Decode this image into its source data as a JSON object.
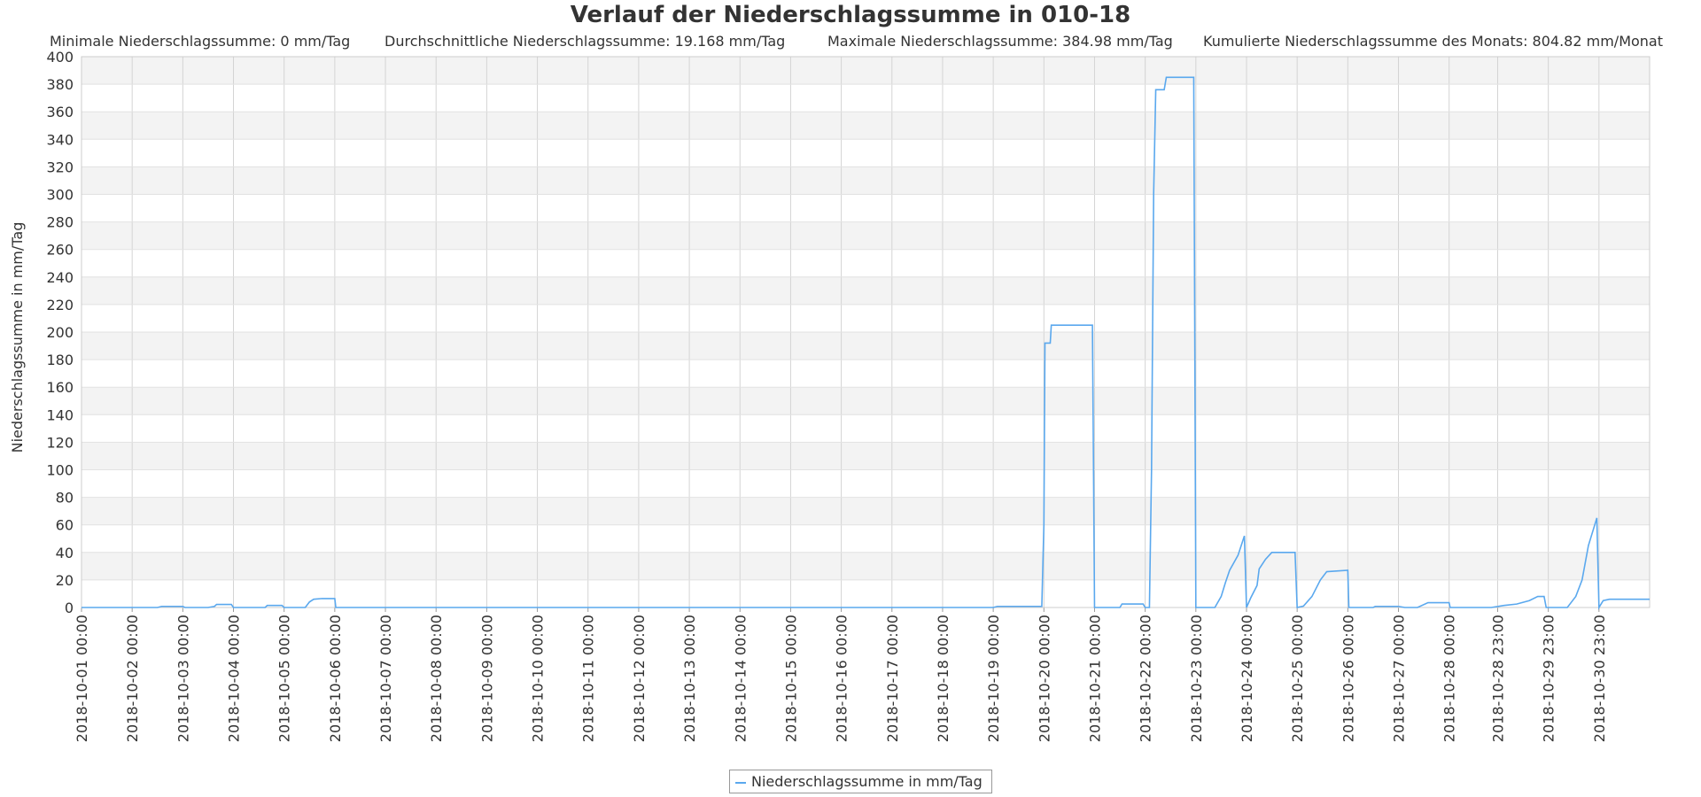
{
  "chart_data": {
    "type": "line",
    "title": "Verlauf der Niederschlagssumme in 010-18",
    "stats": [
      "Minimale Niederschlagssumme: 0 mm/Tag",
      "Durchschnittliche Niederschlagssumme: 19.168 mm/Tag",
      "Maximale Niederschlagssumme: 384.98 mm/Tag",
      "Kumulierte Niederschlagssumme des Monats: 804.82 mm/Monat"
    ],
    "ylabel": "Niederschlagssumme in mm/Tag",
    "xlabel": "",
    "ylim": [
      0,
      400
    ],
    "yticks": [
      0,
      20,
      40,
      60,
      80,
      100,
      120,
      140,
      160,
      180,
      200,
      220,
      240,
      260,
      280,
      300,
      320,
      340,
      360,
      380,
      400
    ],
    "xlim": [
      "2018-10-01 00:00",
      "2018-10-31 23:00"
    ],
    "xticks": [
      "2018-10-01 00:00",
      "2018-10-02 00:00",
      "2018-10-03 00:00",
      "2018-10-04 00:00",
      "2018-10-05 00:00",
      "2018-10-06 00:00",
      "2018-10-07 00:00",
      "2018-10-08 00:00",
      "2018-10-09 00:00",
      "2018-10-10 00:00",
      "2018-10-11 00:00",
      "2018-10-12 00:00",
      "2018-10-13 00:00",
      "2018-10-14 00:00",
      "2018-10-15 00:00",
      "2018-10-16 00:00",
      "2018-10-17 00:00",
      "2018-10-18 00:00",
      "2018-10-19 00:00",
      "2018-10-20 00:00",
      "2018-10-21 00:00",
      "2018-10-22 00:00",
      "2018-10-23 00:00",
      "2018-10-24 00:00",
      "2018-10-25 00:00",
      "2018-10-26 00:00",
      "2018-10-27 00:00",
      "2018-10-28 00:00",
      "2018-10-28 23:00",
      "2018-10-29 23:00",
      "2018-10-30 23:00"
    ],
    "grid": true,
    "legend_position": "bottom",
    "series": [
      {
        "name": "Niederschlagssumme in mm/Tag",
        "color": "#5aa8ee",
        "points": [
          [
            "2018-10-01 00:00",
            0
          ],
          [
            "2018-10-02 12:00",
            0
          ],
          [
            "2018-10-02 14:00",
            0.8
          ],
          [
            "2018-10-03 00:00",
            0.8
          ],
          [
            "2018-10-03 01:00",
            0
          ],
          [
            "2018-10-03 12:00",
            0
          ],
          [
            "2018-10-03 15:00",
            0.8
          ],
          [
            "2018-10-03 16:00",
            2.2
          ],
          [
            "2018-10-03 23:00",
            2.2
          ],
          [
            "2018-10-04 00:00",
            0
          ],
          [
            "2018-10-04 15:00",
            0
          ],
          [
            "2018-10-04 16:00",
            1.5
          ],
          [
            "2018-10-04 23:00",
            1.5
          ],
          [
            "2018-10-05 00:00",
            0
          ],
          [
            "2018-10-05 10:00",
            0
          ],
          [
            "2018-10-05 12:00",
            4
          ],
          [
            "2018-10-05 14:00",
            6
          ],
          [
            "2018-10-05 18:00",
            6.5
          ],
          [
            "2018-10-06 00:00",
            6.5
          ],
          [
            "2018-10-06 00:30",
            0
          ],
          [
            "2018-10-19 00:00",
            0
          ],
          [
            "2018-10-19 02:00",
            0.8
          ],
          [
            "2018-10-19 23:00",
            0.8
          ],
          [
            "2018-10-20 00:00",
            60
          ],
          [
            "2018-10-20 00:30",
            192
          ],
          [
            "2018-10-20 03:00",
            192
          ],
          [
            "2018-10-20 03:30",
            205
          ],
          [
            "2018-10-20 23:00",
            205
          ],
          [
            "2018-10-21 00:00",
            0
          ],
          [
            "2018-10-21 12:00",
            0
          ],
          [
            "2018-10-21 13:00",
            2.5
          ],
          [
            "2018-10-21 23:00",
            2.5
          ],
          [
            "2018-10-22 00:00",
            0
          ],
          [
            "2018-10-22 02:00",
            0
          ],
          [
            "2018-10-22 03:00",
            100
          ],
          [
            "2018-10-22 03:30",
            200
          ],
          [
            "2018-10-22 04:00",
            300
          ],
          [
            "2018-10-22 05:00",
            376
          ],
          [
            "2018-10-22 09:00",
            376
          ],
          [
            "2018-10-22 10:00",
            384.98
          ],
          [
            "2018-10-22 23:00",
            384.98
          ],
          [
            "2018-10-23 00:00",
            0
          ],
          [
            "2018-10-23 09:00",
            0
          ],
          [
            "2018-10-23 12:00",
            8
          ],
          [
            "2018-10-23 14:00",
            18
          ],
          [
            "2018-10-23 16:00",
            27
          ],
          [
            "2018-10-23 20:00",
            38
          ],
          [
            "2018-10-23 23:00",
            52
          ],
          [
            "2018-10-24 00:00",
            0
          ],
          [
            "2018-10-24 02:00",
            7
          ],
          [
            "2018-10-24 05:00",
            16
          ],
          [
            "2018-10-24 06:00",
            28
          ],
          [
            "2018-10-24 09:00",
            35
          ],
          [
            "2018-10-24 12:00",
            40
          ],
          [
            "2018-10-24 23:00",
            40
          ],
          [
            "2018-10-25 00:00",
            0
          ],
          [
            "2018-10-25 03:00",
            1
          ],
          [
            "2018-10-25 07:00",
            8
          ],
          [
            "2018-10-25 11:00",
            20
          ],
          [
            "2018-10-25 14:00",
            26
          ],
          [
            "2018-10-26 00:00",
            27
          ],
          [
            "2018-10-26 00:30",
            0
          ],
          [
            "2018-10-26 12:00",
            0
          ],
          [
            "2018-10-26 13:00",
            0.8
          ],
          [
            "2018-10-27 00:00",
            0.8
          ],
          [
            "2018-10-27 03:00",
            0
          ],
          [
            "2018-10-27 09:00",
            0
          ],
          [
            "2018-10-27 14:00",
            3.5
          ],
          [
            "2018-10-28 00:00",
            3.5
          ],
          [
            "2018-10-28 00:30",
            0
          ],
          [
            "2018-10-28 20:00",
            0
          ],
          [
            "2018-10-29 02:00",
            1.5
          ],
          [
            "2018-10-29 08:00",
            2.5
          ],
          [
            "2018-10-29 14:00",
            5
          ],
          [
            "2018-10-29 18:00",
            8
          ],
          [
            "2018-10-29 21:00",
            8
          ],
          [
            "2018-10-29 22:00",
            0
          ],
          [
            "2018-10-30 08:00",
            0
          ],
          [
            "2018-10-30 12:00",
            8
          ],
          [
            "2018-10-30 15:00",
            20
          ],
          [
            "2018-10-30 18:00",
            45
          ],
          [
            "2018-10-30 21:00",
            60
          ],
          [
            "2018-10-30 22:00",
            65
          ],
          [
            "2018-10-30 23:00",
            0
          ],
          [
            "2018-10-31 01:00",
            5
          ],
          [
            "2018-10-31 04:00",
            6
          ],
          [
            "2018-10-31 23:00",
            6
          ]
        ]
      }
    ]
  }
}
